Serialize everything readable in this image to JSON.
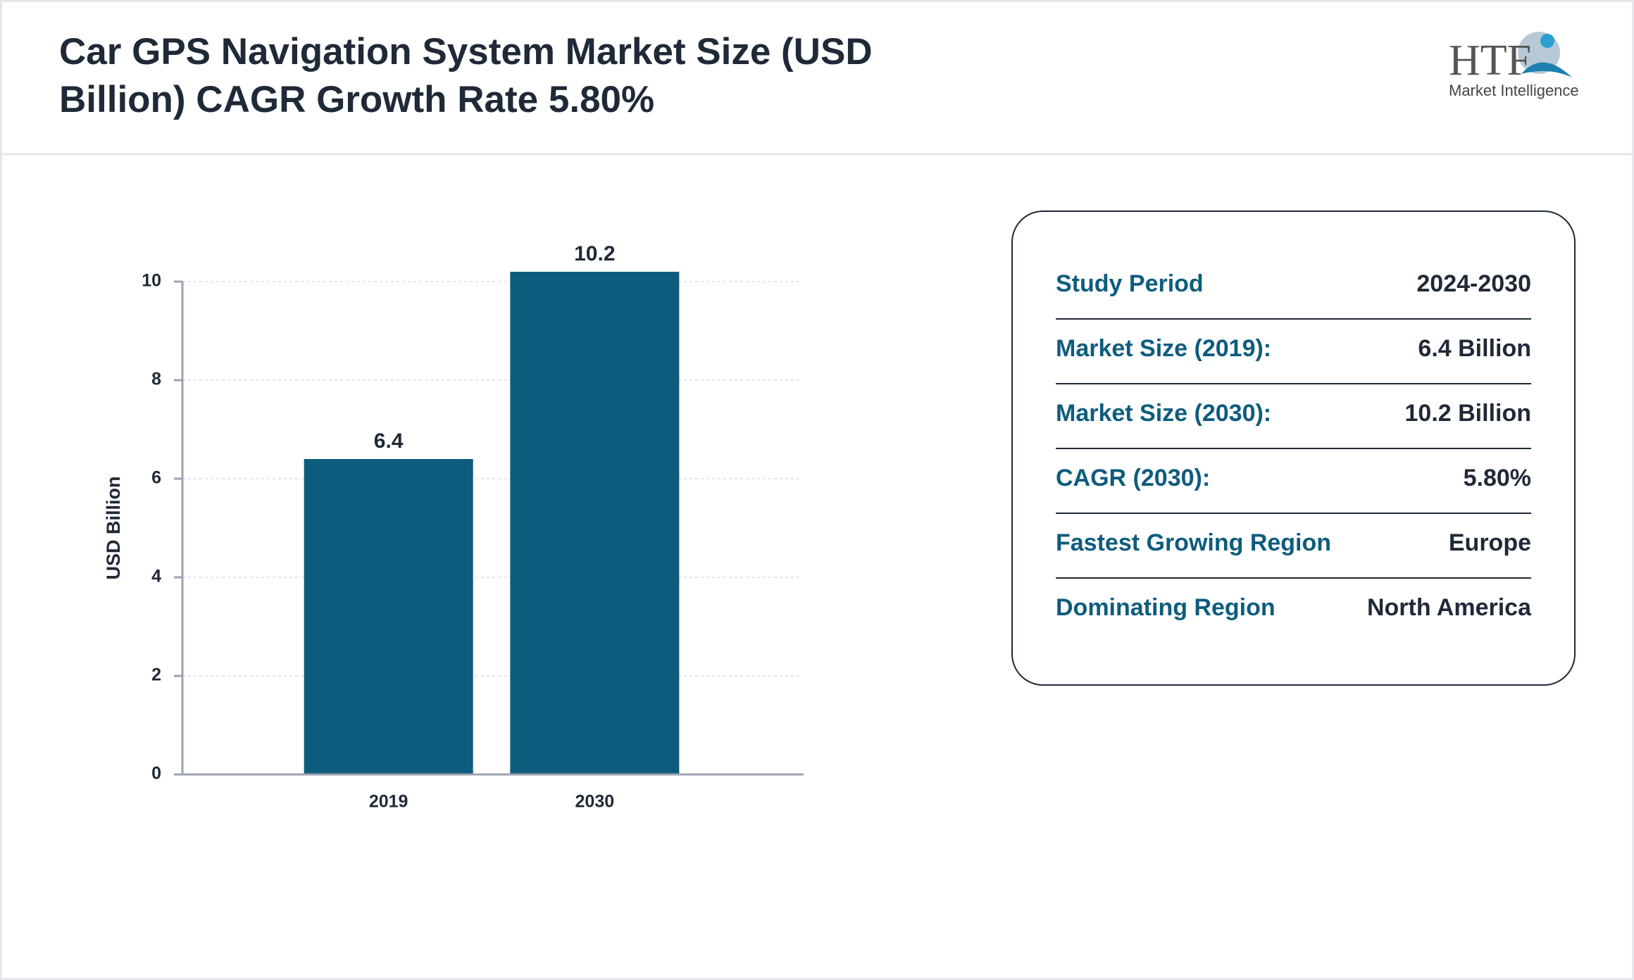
{
  "header": {
    "title_line1": "Car GPS Navigation System Market Size (USD",
    "title_line2": "Billion) CAGR Growth Rate 5.80%"
  },
  "logo": {
    "mark": "HTF",
    "tagline": "Market Intelligence"
  },
  "chart_data": {
    "type": "bar",
    "y_label": "USD Billion",
    "categories": [
      "2019",
      "2030"
    ],
    "values": [
      6.4,
      10.2
    ],
    "color": "#0d5c7d",
    "ylim": [
      0,
      10
    ],
    "yticks": [
      0,
      2,
      4,
      6,
      8,
      10
    ],
    "grid": true
  },
  "summary": {
    "rows": [
      [
        "Study Period",
        "2024-2030"
      ],
      [
        "Market Size (2019):",
        "6.4 Billion"
      ],
      [
        "Market Size (2030):",
        "10.2 Billion"
      ],
      [
        "CAGR (2030):",
        "5.80%"
      ],
      [
        "Fastest Growing Region",
        "Europe"
      ],
      [
        "Dominating Region",
        "North America"
      ]
    ]
  }
}
